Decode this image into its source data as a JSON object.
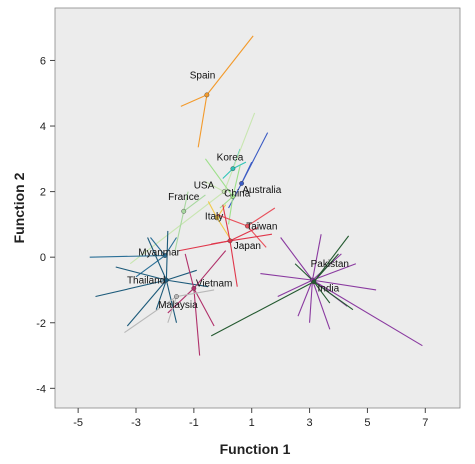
{
  "chart_data": {
    "type": "scatter",
    "xlabel": "Function 1",
    "ylabel": "Function 2",
    "xlim": [
      -5.8,
      8.2
    ],
    "ylim": [
      -4.6,
      7.6
    ],
    "xticks": [
      -5,
      -3,
      -1,
      1,
      3,
      5,
      7
    ],
    "yticks": [
      -4,
      -2,
      0,
      2,
      4,
      6
    ],
    "grid": false,
    "plot_background": "#ececec",
    "groups": [
      {
        "name": "Spain",
        "color": "#f39a2b",
        "centroid": [
          -0.55,
          4.95
        ],
        "label_offset": [
          -0.15,
          0.5
        ],
        "members": [
          [
            1.05,
            6.75
          ],
          [
            -0.85,
            3.35
          ],
          [
            -1.45,
            4.6
          ]
        ]
      },
      {
        "name": "Korea",
        "color": "#2ec4b6",
        "centroid": [
          0.35,
          2.7
        ],
        "label_offset": [
          -0.1,
          0.25
        ],
        "members": [
          [
            0.6,
            3.3
          ],
          [
            0.0,
            2.4
          ],
          [
            0.8,
            2.9
          ]
        ]
      },
      {
        "name": "Australia",
        "color": "#3b5bc4",
        "centroid": [
          0.65,
          2.25
        ],
        "label_offset": [
          0.7,
          -0.3
        ],
        "members": [
          [
            1.55,
            3.8
          ],
          [
            0.2,
            1.5
          ],
          [
            1.0,
            2.9
          ]
        ]
      },
      {
        "name": "USA",
        "color": "#c8e6b0",
        "centroid": [
          0.05,
          2.0
        ],
        "label_offset": [
          -0.7,
          0.1
        ],
        "members": [
          [
            -3.2,
            -0.2
          ],
          [
            1.1,
            4.4
          ],
          [
            -0.6,
            2.3
          ]
        ]
      },
      {
        "name": "China",
        "color": "#9de08a",
        "centroid": [
          0.35,
          1.85
        ],
        "label_offset": [
          0.15,
          0.0
        ],
        "members": [
          [
            -0.6,
            3.0
          ],
          [
            0.2,
            1.0
          ],
          [
            0.6,
            2.8
          ],
          [
            -0.1,
            1.5
          ]
        ]
      },
      {
        "name": "France",
        "color": "#a8d8a0",
        "centroid": [
          -1.35,
          1.4
        ],
        "label_offset": [
          0.0,
          0.35
        ],
        "members": [
          [
            -1.65,
            0.2
          ],
          [
            -0.6,
            1.9
          ],
          [
            -1.2,
            2.0
          ]
        ]
      },
      {
        "name": "Italy",
        "color": "#f2c94c",
        "centroid": [
          -0.2,
          1.2
        ],
        "label_offset": [
          -0.1,
          -0.05
        ],
        "members": [
          [
            0.3,
            0.5
          ],
          [
            -0.5,
            1.7
          ],
          [
            0.1,
            1.6
          ]
        ]
      },
      {
        "name": "Taiwan",
        "color": "#e8505b",
        "centroid": [
          0.85,
          0.95
        ],
        "label_offset": [
          0.5,
          -0.1
        ],
        "members": [
          [
            -0.2,
            1.3
          ],
          [
            1.5,
            0.3
          ],
          [
            1.8,
            1.5
          ]
        ]
      },
      {
        "name": "Japan",
        "color": "#e0364a",
        "centroid": [
          0.25,
          0.5
        ],
        "label_offset": [
          0.6,
          -0.25
        ],
        "members": [
          [
            -1.5,
            0.2
          ],
          [
            1.2,
            0.9
          ],
          [
            0.5,
            -0.9
          ],
          [
            -0.4,
            0.4
          ],
          [
            1.7,
            0.7
          ],
          [
            0.0,
            1.6
          ]
        ]
      },
      {
        "name": "Myanmar",
        "color": "#2a6f97",
        "centroid": [
          -2.0,
          0.05
        ],
        "label_offset": [
          -0.2,
          0.0
        ],
        "members": [
          [
            -4.6,
            0.0
          ],
          [
            -3.0,
            -0.6
          ],
          [
            -1.6,
            0.6
          ],
          [
            -2.5,
            0.6
          ]
        ]
      },
      {
        "name": "Thailand",
        "color": "#1c5a7a",
        "centroid": [
          -1.95,
          -0.7
        ],
        "label_offset": [
          -0.7,
          -0.1
        ],
        "members": [
          [
            -4.4,
            -1.2
          ],
          [
            -3.3,
            -2.1
          ],
          [
            -0.5,
            -0.9
          ],
          [
            -1.6,
            -2.0
          ],
          [
            -2.6,
            0.6
          ],
          [
            -1.9,
            0.8
          ],
          [
            -3.7,
            -0.3
          ],
          [
            -0.9,
            -0.4
          ],
          [
            -2.3,
            -1.6
          ]
        ]
      },
      {
        "name": "Vietnam",
        "color": "#b0306a",
        "centroid": [
          -1.0,
          -0.95
        ],
        "label_offset": [
          0.7,
          0.05
        ],
        "members": [
          [
            0.1,
            0.2
          ],
          [
            -1.9,
            -1.7
          ],
          [
            -0.3,
            -2.1
          ],
          [
            -0.8,
            -3.0
          ],
          [
            -1.3,
            0.1
          ]
        ]
      },
      {
        "name": "Malaysia",
        "color": "#b8b8b8",
        "centroid": [
          -1.6,
          -1.2
        ],
        "label_offset": [
          0.05,
          -0.35
        ],
        "members": [
          [
            -3.4,
            -2.3
          ],
          [
            -0.3,
            -1.0
          ],
          [
            -1.9,
            -2.0
          ]
        ]
      },
      {
        "name": "Pakistan",
        "color": "#8a3aa0",
        "centroid": [
          3.1,
          -0.7
        ],
        "label_offset": [
          0.6,
          0.4
        ],
        "members": [
          [
            1.3,
            -0.5
          ],
          [
            3.0,
            -2.0
          ],
          [
            6.9,
            -2.7
          ],
          [
            4.1,
            0.1
          ],
          [
            3.7,
            -2.2
          ],
          [
            5.3,
            -1.0
          ],
          [
            2.0,
            0.6
          ],
          [
            4.3,
            -1.5
          ],
          [
            2.6,
            -1.8
          ],
          [
            3.4,
            0.7
          ],
          [
            4.6,
            -0.2
          ],
          [
            1.9,
            -1.2
          ]
        ]
      },
      {
        "name": "India",
        "color": "#245a30",
        "centroid": [
          3.15,
          -0.75
        ],
        "label_offset": [
          0.5,
          -0.3
        ],
        "members": [
          [
            -0.4,
            -2.4
          ],
          [
            4.35,
            0.65
          ],
          [
            4.5,
            -1.6
          ],
          [
            3.7,
            -1.4
          ],
          [
            4.0,
            0.1
          ],
          [
            2.5,
            -0.2
          ]
        ]
      }
    ]
  }
}
